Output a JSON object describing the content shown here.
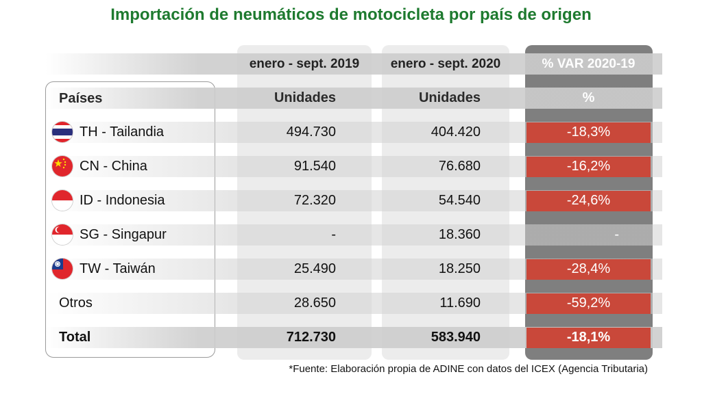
{
  "title": "Importación de neumáticos de motocicleta por país de origen",
  "columns": {
    "country": "Países",
    "period_2019": "enero - sept.  2019",
    "period_2020": "enero - sept. 2020",
    "var": "% VAR 2020-19",
    "units_2019": "Unidades",
    "units_2020": "Unidades",
    "var_unit": "%"
  },
  "rows": [
    {
      "country": "TH - Tailandia",
      "flag": "thailand-flag-icon",
      "v2019": "494.730",
      "v2020": "404.420",
      "var": "-18,3%"
    },
    {
      "country": "CN - China",
      "flag": "china-flag-icon",
      "v2019": "91.540",
      "v2020": "76.680",
      "var": "-16,2%"
    },
    {
      "country": "ID - Indonesia",
      "flag": "indonesia-flag-icon",
      "v2019": "72.320",
      "v2020": "54.540",
      "var": "-24,6%"
    },
    {
      "country": "SG - Singapur",
      "flag": "singapore-flag-icon",
      "v2019": "-",
      "v2020": "18.360",
      "var": "-"
    },
    {
      "country": "TW - Taiwán",
      "flag": "taiwan-flag-icon",
      "v2019": "25.490",
      "v2020": "18.250",
      "var": "-28,4%"
    },
    {
      "country": "Otros",
      "flag": "",
      "v2019": "28.650",
      "v2020": "11.690",
      "var": "-59,2%"
    }
  ],
  "total": {
    "label": "Total",
    "v2019": "712.730",
    "v2020": "583.940",
    "var": "-18,1%"
  },
  "footnote": "*Fuente: Elaboración propia de ADINE con datos del ICEX (Agencia Tributaria)",
  "colors": {
    "title": "#1e7a2f",
    "negative_var": "#c9483a",
    "var_column": "#7f7f7f"
  },
  "chart_data": {
    "type": "table",
    "title": "Importación de neumáticos de motocicleta por país de origen",
    "columns": [
      "Países",
      "enero - sept.  2019 (Unidades)",
      "enero - sept. 2020 (Unidades)",
      "% VAR 2020-19 (%)"
    ],
    "rows": [
      [
        "TH - Tailandia",
        494730,
        404420,
        -18.3
      ],
      [
        "CN - China",
        91540,
        76680,
        -16.2
      ],
      [
        "ID - Indonesia",
        72320,
        54540,
        -24.6
      ],
      [
        "SG - Singapur",
        null,
        18360,
        null
      ],
      [
        "TW - Taiwán",
        25490,
        18250,
        -28.4
      ],
      [
        "Otros",
        28650,
        11690,
        -59.2
      ],
      [
        "Total",
        712730,
        583940,
        -18.1
      ]
    ]
  }
}
